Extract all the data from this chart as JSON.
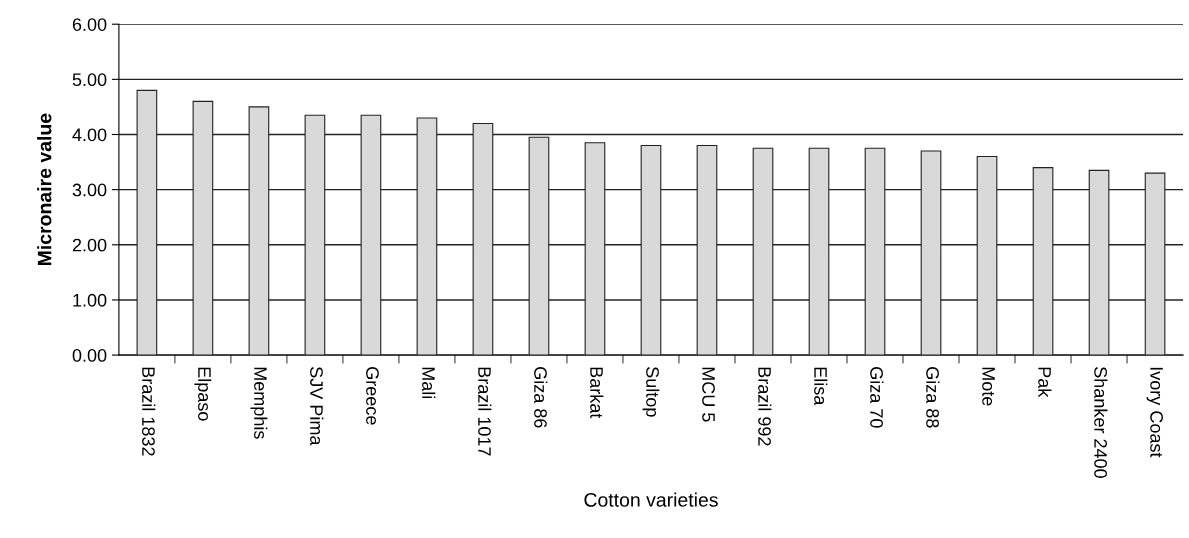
{
  "chart_data": {
    "type": "bar",
    "xlabel": "Cotton varieties",
    "ylabel": "Micronaire value",
    "categories": [
      "Brazil 1832",
      "Elpaso",
      "Memphis",
      "SJV Pima",
      "Greece",
      "Mali",
      "Brazil 1017",
      "Giza 86",
      "Barkat",
      "Sultop",
      "MCU 5",
      "Brazil 992",
      "Elisa",
      "Giza 70",
      "Giza 88",
      "Mote",
      "Pak",
      "Shanker 2400",
      "Ivory Coast"
    ],
    "values": [
      4.8,
      4.6,
      4.5,
      4.35,
      4.35,
      4.3,
      4.2,
      3.95,
      3.85,
      3.8,
      3.8,
      3.75,
      3.75,
      3.75,
      3.7,
      3.6,
      3.4,
      3.35,
      3.3
    ],
    "color": "#d9d9d9",
    "ylim": [
      0,
      6
    ],
    "yticks": [
      {
        "value": 0,
        "label": "0.00"
      },
      {
        "value": 1,
        "label": "1.00"
      },
      {
        "value": 2,
        "label": "2.00"
      },
      {
        "value": 3,
        "label": "3.00"
      },
      {
        "value": 4,
        "label": "4.00"
      },
      {
        "value": 5,
        "label": "5.00"
      },
      {
        "value": 6,
        "label": "6.00"
      }
    ],
    "grid": "y",
    "legend": false
  }
}
